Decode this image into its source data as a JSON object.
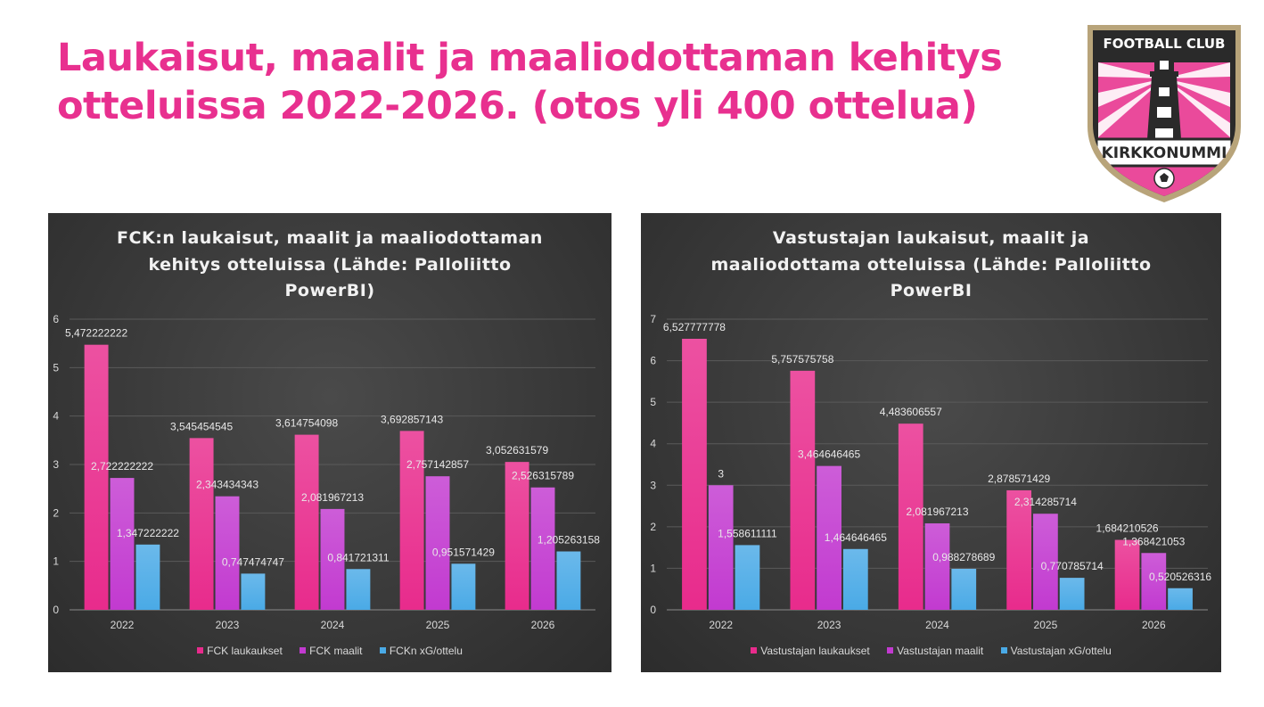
{
  "title": "Laukaisut, maalit ja maaliodottaman kehitys otteluissa 2022-2026. (otos yli 400 ottelua)",
  "logo": {
    "icon": "fc-kirkkonummi-crest-icon",
    "top_text": "FOOTBALL CLUB",
    "banner_text": "KIRKKONUMMI",
    "colors": {
      "pink": "#ea4a9b",
      "gold": "#b8a47a",
      "dark": "#2a2a2a"
    }
  },
  "chart_data": [
    {
      "type": "bar",
      "title": "FCK:n laukaisut, maalit ja maaliodottaman kehitys otteluissa (Lähde: Palloliitto PowerBI)",
      "title_lines": [
        "FCK:n laukaisut, maalit ja maaliodottaman",
        "kehitys otteluissa (Lähde: Palloliitto",
        "PowerBI)"
      ],
      "categories": [
        "2022",
        "2023",
        "2024",
        "2025",
        "2026"
      ],
      "ylim": [
        0,
        6
      ],
      "yticks": [
        "0",
        "1",
        "2",
        "3",
        "4",
        "5",
        "6"
      ],
      "grid": true,
      "legend_position": "bottom",
      "series": [
        {
          "name": "FCK laukaukset",
          "color": "#e82b8c",
          "values": [
            5.472222222,
            3.545454545,
            3.614754098,
            3.692857143,
            3.052631579
          ],
          "labels": [
            "5,472222222",
            "3,545454545",
            "3,614754098",
            "3,692857143",
            "3,052631579"
          ]
        },
        {
          "name": "FCK maalit",
          "color": "#c23ad0",
          "values": [
            2.722222222,
            2.343434343,
            2.081967213,
            2.757142857,
            2.526315789
          ],
          "labels": [
            "2,722222222",
            "2,343434343",
            "2,081967213",
            "2,757142857",
            "2,526315789"
          ]
        },
        {
          "name": "FCKn xG/ottelu",
          "color": "#4aaae6",
          "values": [
            1.347222222,
            0.747474747,
            0.841721311,
            0.951571429,
            1.205263158
          ],
          "labels": [
            "1,347222222",
            "0,747474747",
            "0,841721311",
            "0,951571429",
            "1,205263158"
          ]
        }
      ]
    },
    {
      "type": "bar",
      "title": "Vastustajan laukaisut, maalit ja maaliodottama otteluissa (Lähde: Palloliitto PowerBI",
      "title_lines": [
        "Vastustajan laukaisut, maalit ja",
        "maaliodottama otteluissa (Lähde: Palloliitto",
        "PowerBI"
      ],
      "categories": [
        "2022",
        "2023",
        "2024",
        "2025",
        "2026"
      ],
      "ylim": [
        0,
        7
      ],
      "yticks": [
        "0",
        "1",
        "2",
        "3",
        "4",
        "5",
        "6",
        "7"
      ],
      "grid": true,
      "legend_position": "bottom",
      "series": [
        {
          "name": "Vastustajan laukaukset",
          "color": "#e82b8c",
          "values": [
            6.527777778,
            5.757575758,
            4.483606557,
            2.878571429,
            1.684210526
          ],
          "labels": [
            "6,527777778",
            "5,757575758",
            "4,483606557",
            "2,878571429",
            "1,684210526"
          ]
        },
        {
          "name": "Vastustajan maalit",
          "color": "#c23ad0",
          "values": [
            3,
            3.464646465,
            2.081967213,
            2.314285714,
            1.368421053
          ],
          "labels": [
            "3",
            "3,464646465",
            "2,081967213",
            "2,314285714",
            "1,368421053"
          ]
        },
        {
          "name": "Vastustajan xG/ottelu",
          "color": "#4aaae6",
          "values": [
            1.558611111,
            1.464646465,
            0.988278689,
            0.770785714,
            0.520526316
          ],
          "labels": [
            "1,558611111",
            "1,464646465",
            "0,988278689",
            "0,770785714",
            "0,520526316"
          ]
        }
      ]
    }
  ]
}
